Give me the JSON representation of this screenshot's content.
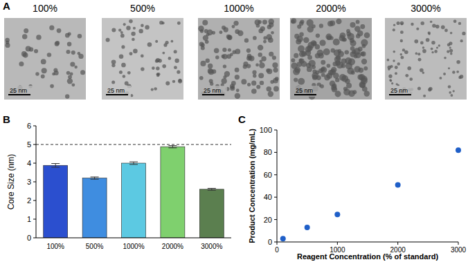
{
  "panel_labels": [
    "A",
    "B",
    "C"
  ],
  "panel_a": {
    "images": [
      {
        "caption": "100%",
        "scale_bar": "25 nm"
      },
      {
        "caption": "500%",
        "scale_bar": "25 nm"
      },
      {
        "caption": "1000%",
        "scale_bar": "25 nm"
      },
      {
        "caption": "2000%",
        "scale_bar": "25 nm"
      },
      {
        "caption": "3000%",
        "scale_bar": "25 nm"
      }
    ]
  },
  "chart_data": [
    {
      "type": "bar",
      "y_label": "Core Size (nm)",
      "categories": [
        "100%",
        "500%",
        "1000%",
        "2000%",
        "3000%"
      ],
      "values": [
        3.88,
        3.2,
        4.0,
        4.88,
        2.6
      ],
      "errors": [
        0.1,
        0.06,
        0.07,
        0.06,
        0.05
      ],
      "colors": [
        "#2b4fcf",
        "#3f8de0",
        "#5cc9e2",
        "#7fd06e",
        "#5b7f4f"
      ],
      "reference_line": 5,
      "ylim": [
        0,
        6
      ],
      "yticks": [
        0,
        1,
        2,
        3,
        4,
        5,
        6
      ]
    },
    {
      "type": "scatter",
      "x_label": "Reagent Concentration (% of standard)",
      "y_label": "Product Concentration (mg/mL)",
      "x": [
        100,
        500,
        1000,
        2000,
        3000
      ],
      "values": [
        3,
        13,
        24.5,
        51,
        82
      ],
      "color": "#1f5fc8",
      "marker": "circle",
      "xlim": [
        0,
        3000
      ],
      "xticks": [
        0,
        1000,
        2000,
        3000
      ],
      "ylim": [
        0,
        100
      ],
      "yticks": [
        0,
        20,
        40,
        60,
        80,
        100
      ]
    }
  ]
}
